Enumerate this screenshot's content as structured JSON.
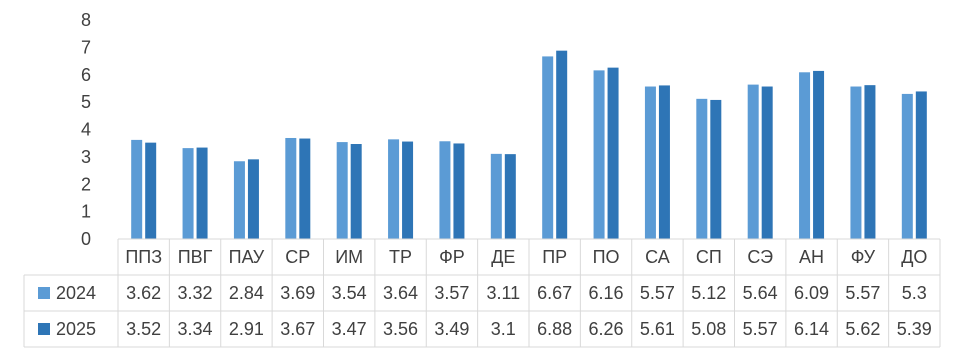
{
  "chart_data": {
    "type": "bar",
    "title": "",
    "xlabel": "",
    "ylabel": "",
    "ylim": [
      0,
      8
    ],
    "yticks": [
      0,
      1,
      2,
      3,
      4,
      5,
      6,
      7,
      8
    ],
    "grid": false,
    "legend": "data-table",
    "categories": [
      "ППЗ",
      "ПВГ",
      "ПАУ",
      "СР",
      "ИМ",
      "ТР",
      "ФР",
      "ДЕ",
      "ПР",
      "ПО",
      "СА",
      "СП",
      "СЭ",
      "АН",
      "ФУ",
      "ДО"
    ],
    "series": [
      {
        "name": "2024",
        "color": "#5b9bd5",
        "values": [
          3.62,
          3.32,
          2.84,
          3.69,
          3.54,
          3.64,
          3.57,
          3.11,
          6.67,
          6.16,
          5.57,
          5.12,
          5.64,
          6.09,
          5.57,
          5.3
        ]
      },
      {
        "name": "2025",
        "color": "#2e75b6",
        "values": [
          3.52,
          3.34,
          2.91,
          3.67,
          3.47,
          3.56,
          3.49,
          3.1,
          6.88,
          6.26,
          5.61,
          5.08,
          5.57,
          6.14,
          5.62,
          5.39
        ]
      }
    ]
  }
}
